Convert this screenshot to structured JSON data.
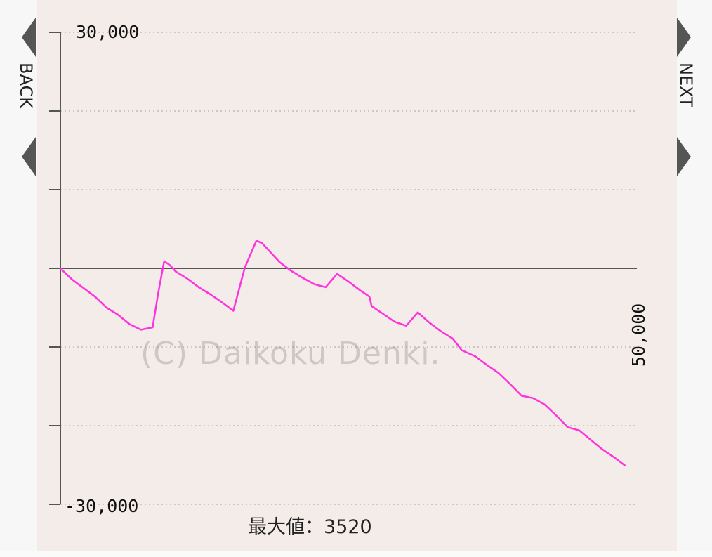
{
  "nav": {
    "back_label": "BACK",
    "next_label": "NEXT"
  },
  "watermark": "(C) Daikoku Denki.",
  "footer": {
    "max_label": "最大値：3520"
  },
  "colors": {
    "line": "#ff33dd",
    "axis": "#555555",
    "grid": "#bbbbbb",
    "nav": "#555555"
  },
  "chart_data": {
    "type": "line",
    "title": "",
    "xlabel": "",
    "ylabel": "",
    "ylim": [
      -30000,
      30000
    ],
    "xlim": [
      0,
      50000
    ],
    "ytick_labels": [
      "30,000",
      "-30,000"
    ],
    "xtick_labels": [
      "50,000"
    ],
    "grid": true,
    "y_gridlines": [
      30000,
      20000,
      10000,
      0,
      -10000,
      -20000,
      -30000
    ],
    "series": [
      {
        "x": [
          0,
          1000,
          2000,
          3000,
          4000,
          5000,
          6000,
          7000,
          8000,
          8500,
          9000,
          9500,
          10000,
          11000,
          12000,
          13000,
          14000,
          15000,
          16000,
          17000,
          17500,
          18000,
          18500,
          19000,
          20000,
          21000,
          22000,
          23000,
          24000,
          25000,
          26000,
          26800,
          27000,
          28000,
          29000,
          30000,
          31000,
          32000,
          33000,
          34000,
          34500,
          34800,
          36000,
          37000,
          38000,
          39000,
          40000,
          41000,
          42000,
          43000,
          44000,
          45000,
          46000,
          47000,
          48000,
          49000
        ],
        "y": [
          0,
          -1400,
          -2500,
          -3600,
          -5000,
          -5900,
          -7100,
          -7800,
          -7500,
          -3000,
          900,
          400,
          -400,
          -1300,
          -2400,
          -3300,
          -4300,
          -5400,
          100,
          3500,
          3200,
          2400,
          1600,
          800,
          -300,
          -1200,
          -2000,
          -2400,
          -700,
          -1700,
          -2800,
          -3600,
          -4800,
          -5800,
          -6800,
          -7300,
          -5600,
          -6900,
          -8000,
          -8900,
          -9800,
          -10400,
          -11200,
          -12300,
          -13300,
          -14700,
          -16200,
          -16500,
          -17300,
          -18700,
          -20200,
          -20600,
          -21800,
          -23000,
          -24000,
          -25100
        ]
      }
    ]
  }
}
